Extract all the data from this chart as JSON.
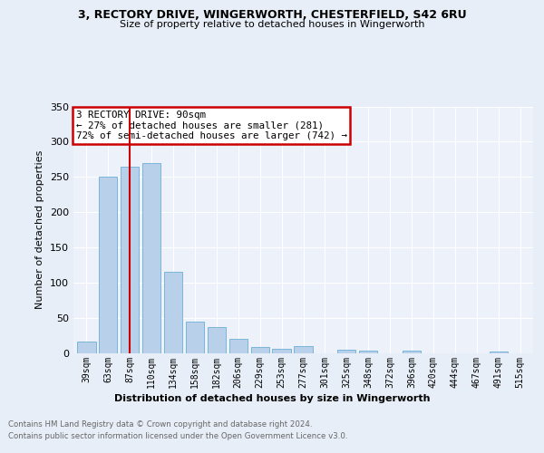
{
  "title1": "3, RECTORY DRIVE, WINGERWORTH, CHESTERFIELD, S42 6RU",
  "title2": "Size of property relative to detached houses in Wingerworth",
  "xlabel": "Distribution of detached houses by size in Wingerworth",
  "ylabel": "Number of detached properties",
  "categories": [
    "39sqm",
    "63sqm",
    "87sqm",
    "110sqm",
    "134sqm",
    "158sqm",
    "182sqm",
    "206sqm",
    "229sqm",
    "253sqm",
    "277sqm",
    "301sqm",
    "325sqm",
    "348sqm",
    "372sqm",
    "396sqm",
    "420sqm",
    "444sqm",
    "467sqm",
    "491sqm",
    "515sqm"
  ],
  "values": [
    17,
    250,
    265,
    270,
    116,
    45,
    37,
    21,
    9,
    6,
    10,
    0,
    5,
    4,
    0,
    4,
    0,
    0,
    0,
    3,
    0
  ],
  "bar_color": "#b8d0ea",
  "bar_edge_color": "#6baed6",
  "property_line_x": 2.0,
  "annotation_text": "3 RECTORY DRIVE: 90sqm\n← 27% of detached houses are smaller (281)\n72% of semi-detached houses are larger (742) →",
  "annotation_box_color": "#ffffff",
  "annotation_box_edge_color": "#cc0000",
  "property_line_color": "#cc0000",
  "ylim": [
    0,
    350
  ],
  "yticks": [
    0,
    50,
    100,
    150,
    200,
    250,
    300,
    350
  ],
  "footer1": "Contains HM Land Registry data © Crown copyright and database right 2024.",
  "footer2": "Contains public sector information licensed under the Open Government Licence v3.0.",
  "bg_color": "#e8eef8",
  "plot_bg": "#edf2fa"
}
